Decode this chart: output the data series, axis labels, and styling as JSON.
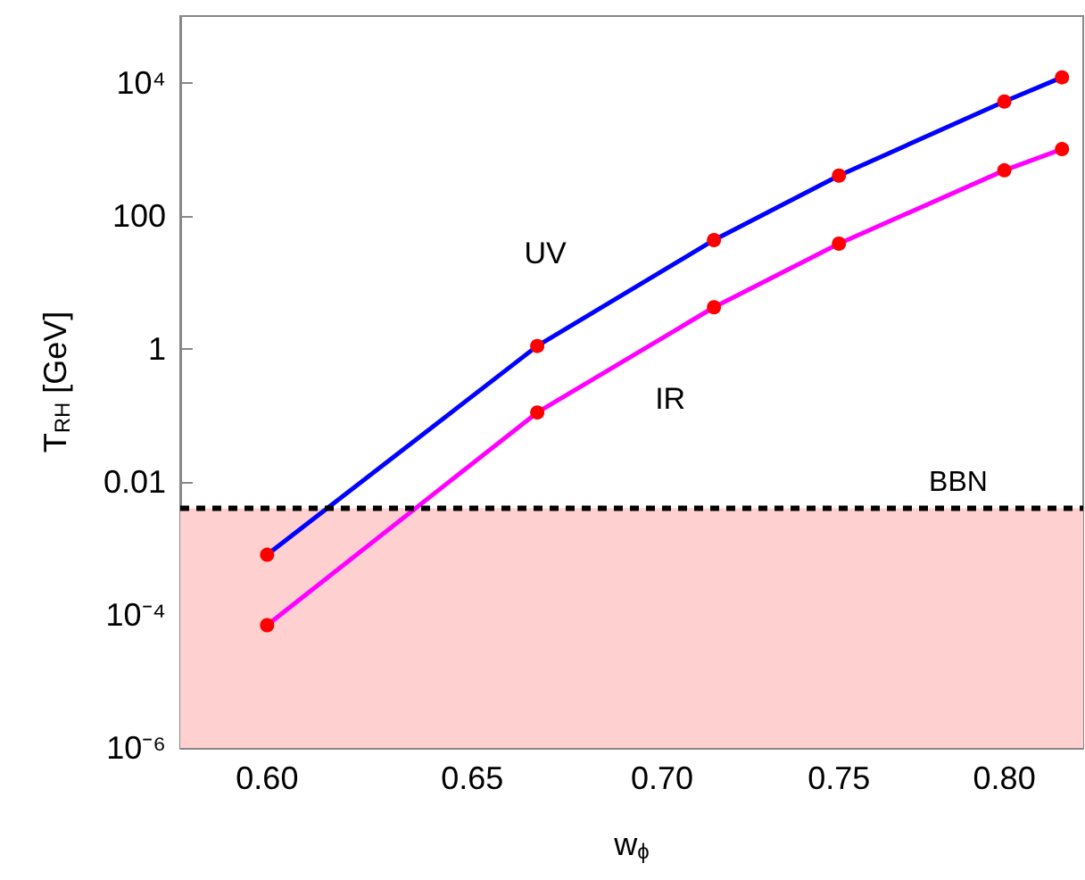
{
  "chart_data": {
    "type": "line",
    "xlabel": "w$_{ϕ}$",
    "ylabel": "T$_{RH}$ [GeV]",
    "log": "xy",
    "grid": false,
    "legend": false,
    "marker": "circle",
    "line_style": "solid",
    "x": [
      0.6,
      0.6667,
      0.7143,
      0.75,
      0.8,
      0.8182
    ],
    "series": [
      {
        "name": "UV",
        "color": "#0000ff",
        "colors": [
          "#ff0000",
          "#ff0000",
          "#ff0000",
          "#ff0000",
          "#ff0000",
          "#ff0000"
        ],
        "values": [
          0.0008,
          1.1,
          43,
          400,
          5200,
          12000
        ]
      },
      {
        "name": "IR",
        "color": "#ff00ff",
        "colors": [
          "#ff0000",
          "#ff0000",
          "#ff0000",
          "#ff0000",
          "#ff0000",
          "#ff0000"
        ],
        "values": [
          7e-05,
          0.11,
          4.2,
          38,
          480,
          1000
        ]
      }
    ],
    "xlim": [
      0.58,
      0.825
    ],
    "xticks": [
      {
        "value": 0.6,
        "label": "0.60"
      },
      {
        "value": 0.65,
        "label": "0.65"
      },
      {
        "value": 0.7,
        "label": "0.70"
      },
      {
        "value": 0.75,
        "label": "0.75"
      },
      {
        "value": 0.8,
        "label": "0.80"
      }
    ],
    "ylim": [
      1e-06,
      100000
    ],
    "yticks": [
      {
        "value": 1e-06,
        "label": "10⁻⁶"
      },
      {
        "value": 0.0001,
        "label": "10⁻⁴"
      },
      0.01,
      1,
      100,
      {
        "value": 10000,
        "label": "10⁴"
      }
    ],
    "ref_lines": [
      {
        "axis": "y",
        "value": 0.004,
        "label": "BBN",
        "color": "#000000",
        "line_style": "dashed"
      }
    ],
    "bands": [
      {
        "axis": "y",
        "from": 1e-06,
        "to": 0.004,
        "color": "#ffd0d0"
      }
    ]
  }
}
